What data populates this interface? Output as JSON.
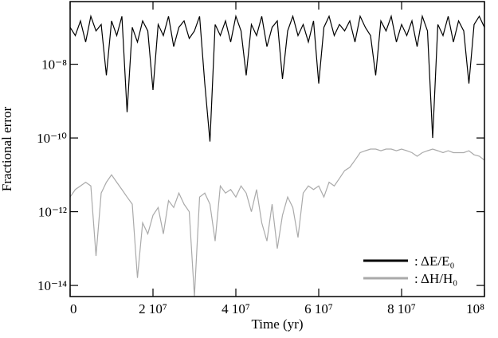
{
  "chart_data": {
    "type": "line",
    "x_label": "Time (yr)",
    "y_label": "Fractional error",
    "x": [
      0,
      1250000,
      2500000,
      3750000,
      5000000,
      6250000,
      7500000,
      8750000,
      10000000,
      11250000,
      12500000,
      13750000,
      15000000,
      16250000,
      17500000,
      18750000,
      20000000,
      21250000,
      22500000,
      23750000,
      25000000,
      26250000,
      27500000,
      28750000,
      30000000,
      31250000,
      32500000,
      33750000,
      35000000,
      36250000,
      37500000,
      38750000,
      40000000,
      41250000,
      42500000,
      43750000,
      45000000,
      46250000,
      47500000,
      48750000,
      50000000,
      51250000,
      52500000,
      53750000,
      55000000,
      56250000,
      57500000,
      58750000,
      60000000,
      61250000,
      62500000,
      63750000,
      65000000,
      66250000,
      67500000,
      68750000,
      70000000,
      71250000,
      72500000,
      73750000,
      75000000,
      76250000,
      77500000,
      78750000,
      80000000,
      81250000,
      82500000,
      83750000,
      85000000,
      86250000,
      87500000,
      88750000,
      90000000,
      91250000,
      92500000,
      93750000,
      95000000,
      96250000,
      97500000,
      98750000,
      100000000
    ],
    "series": [
      {
        "name": ": ΔE/E₀",
        "color": "#000000",
        "values": [
          1e-07,
          6e-08,
          1.5e-07,
          4e-08,
          2e-07,
          8e-08,
          1.2e-07,
          5e-09,
          1.5e-07,
          6e-08,
          2e-07,
          5e-10,
          1e-07,
          4e-08,
          1.5e-07,
          8e-08,
          2e-09,
          1.2e-07,
          6e-08,
          2e-07,
          3e-08,
          1e-07,
          1.5e-07,
          5e-08,
          8e-08,
          2e-07,
          3e-09,
          8e-11,
          1.2e-07,
          6e-08,
          1.5e-07,
          4e-08,
          2e-07,
          8e-08,
          5e-09,
          1.2e-07,
          6e-08,
          2e-07,
          3e-08,
          1e-07,
          1.5e-07,
          4e-09,
          8e-08,
          2e-07,
          6e-08,
          1.2e-07,
          4e-08,
          1.5e-07,
          3e-09,
          1e-07,
          2e-07,
          6e-08,
          1.2e-07,
          8e-08,
          1.5e-07,
          4e-08,
          2e-07,
          1e-07,
          6e-08,
          5e-09,
          1.5e-07,
          8e-08,
          2e-07,
          4e-08,
          1.2e-07,
          6e-08,
          1.5e-07,
          3e-08,
          2e-07,
          8e-08,
          1e-10,
          1.2e-07,
          6e-08,
          2e-07,
          4e-08,
          1.5e-07,
          8e-08,
          3e-09,
          1.2e-07,
          2e-07,
          1e-07
        ]
      },
      {
        "name": ": ΔH/H₀",
        "color": "#aaaaaa",
        "values": [
          2.5e-12,
          4e-12,
          5e-12,
          6.3e-12,
          5e-12,
          6.3e-14,
          3.2e-12,
          6.3e-12,
          1e-11,
          6.3e-12,
          4e-12,
          2.5e-12,
          1.6e-12,
          1.6e-14,
          5e-13,
          2.5e-13,
          8e-13,
          1.3e-12,
          2.5e-13,
          2e-12,
          1.3e-12,
          3.2e-12,
          1.6e-12,
          1e-12,
          5e-15,
          2.5e-12,
          3.2e-12,
          1.6e-12,
          1.6e-13,
          5e-12,
          3.2e-12,
          4e-12,
          2.5e-12,
          5e-12,
          3.2e-12,
          1e-12,
          4e-12,
          5e-13,
          1.6e-13,
          1.6e-12,
          1e-13,
          8e-13,
          2.5e-12,
          1.3e-12,
          2e-13,
          3.2e-12,
          5e-12,
          4e-12,
          5e-12,
          2.5e-12,
          6.3e-12,
          5e-12,
          8e-12,
          1.3e-11,
          1.6e-11,
          2.5e-11,
          4e-11,
          4.5e-11,
          5e-11,
          5e-11,
          4.5e-11,
          5e-11,
          5e-11,
          4.5e-11,
          5e-11,
          4.5e-11,
          4e-11,
          3.2e-11,
          4e-11,
          4.5e-11,
          5e-11,
          4.5e-11,
          4e-11,
          4.5e-11,
          4e-11,
          4e-11,
          4e-11,
          4.5e-11,
          3.5e-11,
          3.2e-11,
          2.5e-11
        ]
      }
    ],
    "xlim": [
      0,
      100000000
    ],
    "xticks": [
      {
        "value": 0,
        "label": "0"
      },
      {
        "value": 20000000,
        "label": "2 10⁷"
      },
      {
        "value": 40000000,
        "label": "4 10⁷"
      },
      {
        "value": 60000000,
        "label": "6 10⁷"
      },
      {
        "value": 80000000,
        "label": "8 10⁷"
      },
      {
        "value": 100000000,
        "label": "10⁸"
      }
    ],
    "ylim": [
      5e-15,
      5e-07
    ],
    "y_scale": "log",
    "yticks": [
      {
        "value": 1e-14,
        "label": "10⁻¹⁴"
      },
      {
        "value": 1e-12,
        "label": "10⁻¹²"
      },
      {
        "value": 1e-10,
        "label": "10⁻¹⁰"
      },
      {
        "value": 1e-08,
        "label": "10⁻⁸"
      }
    ],
    "legend": "lower right"
  }
}
